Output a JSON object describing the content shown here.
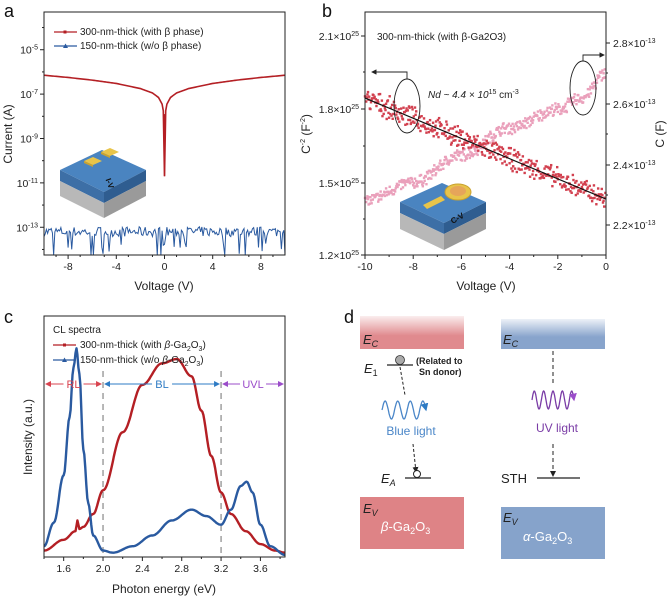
{
  "panels": {
    "a": {
      "label": "a"
    },
    "b": {
      "label": "b"
    },
    "c": {
      "label": "c"
    },
    "d": {
      "label": "d"
    }
  },
  "chart_data": [
    {
      "id": "a",
      "type": "line",
      "title": "",
      "xlabel": "Voltage (V)",
      "ylabel": "Current (A)",
      "yscale": "log",
      "xlim": [
        -10,
        10
      ],
      "ylim_log10": [
        -14.25,
        -3.3
      ],
      "xticks": [
        -8,
        -4,
        0,
        4,
        8
      ],
      "xtick_labels": [
        "-8",
        "-4",
        "0",
        "4",
        "8"
      ],
      "yticks_log10": [
        -5,
        -7,
        -9,
        -11,
        -13
      ],
      "ytick_labels": [
        "10-5",
        "10-7",
        "10-9",
        "10-11",
        "10-13"
      ],
      "legend": [
        {
          "name": "300-nm-thick (with β phase)",
          "color": "#b41f24",
          "marker": "square"
        },
        {
          "name": "150-nm-thick (w/o β phase)",
          "color": "#2a5aa0",
          "marker": "triangle"
        }
      ],
      "series": [
        {
          "name": "300-nm-thick (with β phase)",
          "color": "#b41f24",
          "x": [
            -10,
            -8,
            -6,
            -4,
            -2,
            -1,
            -0.5,
            -0.2,
            -0.05,
            0,
            0.05,
            0.2,
            0.5,
            1,
            2,
            4,
            6,
            8,
            10
          ],
          "y_log10": [
            -6.15,
            -6.25,
            -6.37,
            -6.52,
            -6.75,
            -6.95,
            -7.15,
            -7.45,
            -7.9,
            -10.7,
            -7.9,
            -7.45,
            -7.15,
            -6.95,
            -6.75,
            -6.52,
            -6.37,
            -6.25,
            -6.15
          ]
        },
        {
          "name": "150-nm-thick (w/o β phase)",
          "color": "#2a5aa0",
          "description": "noise floor near 1e-13 A with random dips to ~1e-14 A",
          "mean_log10": -13.2,
          "spread_log10": 0.45
        }
      ],
      "inset_label": "I-V"
    },
    {
      "id": "b",
      "type": "scatter",
      "title": "300-nm-thick (with β-Ga2O3)",
      "xlabel": "Voltage (V)",
      "ylabel_left": "C-2 (F-2)",
      "ylabel_right": "C (F)",
      "xlim": [
        -10,
        0
      ],
      "ylim_left": [
        1.2e+25,
        2.1e+25
      ],
      "ylim_right": [
        2.1e-13,
        2.87e-13
      ],
      "xticks": [
        -10,
        -8,
        -6,
        -4,
        -2,
        0
      ],
      "xtick_labels": [
        "-10",
        "-8",
        "-6",
        "-4",
        "-2",
        "0"
      ],
      "yticks_left": [
        2.1e+25,
        1.8e+25,
        1.5e+25,
        1.2e+25
      ],
      "ytick_left_labels": [
        "2.1×10",
        "1.8×10",
        "1.5×10",
        "1.2×10"
      ],
      "ytick_left_exp": "25",
      "yticks_right": [
        2.8e-13,
        2.6e-13,
        2.4e-13,
        2.2e-13
      ],
      "ytick_right_labels": [
        "2.8×10",
        "2.6×10",
        "2.4×10",
        "2.2×10"
      ],
      "ytick_right_exp": "-13",
      "annotation": {
        "text": "Nd ~ 4.4 × 10",
        "exp": "15",
        "unit": " cm",
        "unit_exp": "-3"
      },
      "series": [
        {
          "name": "C-2",
          "axis": "left",
          "color": "#d2404f",
          "fit_line": {
            "x": [
              -10,
              0
            ],
            "y": [
              1.845e+25,
              1.43e+25
            ]
          },
          "noise": 2.5e+23
        },
        {
          "name": "C",
          "axis": "right",
          "color": "#eaa0bb",
          "x": [
            -10,
            -8,
            -6,
            -4,
            -2,
            -1,
            0
          ],
          "y": [
            2.28e-13,
            2.34e-13,
            2.43e-13,
            2.52e-13,
            2.58e-13,
            2.62e-13,
            2.7e-13
          ],
          "noise": 1.2e-15
        }
      ],
      "inset_label": "C-V"
    },
    {
      "id": "c",
      "type": "line",
      "title": "CL spectra",
      "xlabel": "Photon energy (eV)",
      "ylabel": "Intensity (a.u.)",
      "xlim": [
        1.4,
        3.85
      ],
      "ylim": [
        0,
        1.12
      ],
      "xticks": [
        1.6,
        2.0,
        2.4,
        2.8,
        3.2,
        3.6
      ],
      "xtick_labels": [
        "1.6",
        "2.0",
        "2.4",
        "2.8",
        "3.2",
        "3.6"
      ],
      "dividers": [
        2.0,
        3.2
      ],
      "regions": [
        {
          "label": "RL",
          "color": "#d9434f",
          "from": 1.4,
          "to": 2.0
        },
        {
          "label": "BL",
          "color": "#2e7bc4",
          "from": 2.0,
          "to": 3.2
        },
        {
          "label": "UVL",
          "color": "#9b4dca",
          "from": 3.2,
          "to": 3.85
        }
      ],
      "legend": [
        {
          "name": "300-nm-thick (with β-Ga2O3)",
          "color": "#b41f24",
          "marker": "square"
        },
        {
          "name": "150-nm-thick (w/o β-Ga2O3)",
          "color": "#2a5aa0",
          "marker": "triangle"
        }
      ],
      "series": [
        {
          "name": "300-nm-thick (with β-Ga2O3)",
          "color": "#b41f24",
          "x": [
            1.4,
            1.6,
            1.72,
            1.74,
            1.76,
            1.8,
            1.9,
            2.0,
            2.2,
            2.4,
            2.6,
            2.75,
            2.9,
            3.0,
            3.1,
            3.2,
            3.3,
            3.45,
            3.6,
            3.75,
            3.85
          ],
          "y": [
            0.03,
            0.08,
            0.12,
            0.17,
            0.13,
            0.14,
            0.2,
            0.31,
            0.58,
            0.8,
            0.9,
            0.92,
            0.84,
            0.68,
            0.47,
            0.3,
            0.2,
            0.12,
            0.06,
            0.03,
            0.02
          ]
        },
        {
          "name": "150-nm-thick (w/o β-Ga2O3)",
          "color": "#2a5aa0",
          "x": [
            1.4,
            1.5,
            1.6,
            1.66,
            1.7,
            1.73,
            1.76,
            1.8,
            1.85,
            1.9,
            2.0,
            2.1,
            2.3,
            2.5,
            2.7,
            2.9,
            3.05,
            3.2,
            3.3,
            3.4,
            3.46,
            3.52,
            3.6,
            3.7,
            3.85
          ],
          "y": [
            0.05,
            0.16,
            0.38,
            0.65,
            0.88,
            0.97,
            0.85,
            0.5,
            0.25,
            0.1,
            0.03,
            0.02,
            0.05,
            0.1,
            0.17,
            0.22,
            0.19,
            0.15,
            0.22,
            0.33,
            0.35,
            0.3,
            0.15,
            0.05,
            0.01
          ]
        }
      ]
    }
  ],
  "diagram_d": {
    "beta": {
      "ec_label": "E",
      "ec_sub": "C",
      "e1_label": "E",
      "e1_sub": "1",
      "note_line1": "(Related to",
      "note_line2": "Sn donor)",
      "light_label": "Blue light",
      "ea_label": "E",
      "ea_sub": "A",
      "ev_label": "E",
      "ev_sub": "V",
      "material": "β-Ga",
      "material_sub1": "2",
      "material_mid": "O",
      "material_sub2": "3",
      "band_color": "#e08a8e",
      "light_color": "#4a86c8"
    },
    "alpha": {
      "ec_label": "E",
      "ec_sub": "C",
      "light_label": "UV light",
      "sth_label": "STH",
      "ev_label": "E",
      "ev_sub": "V",
      "material": "α-Ga",
      "material_sub1": "2",
      "material_mid": "O",
      "material_sub2": "3",
      "band_color": "#88a4cc",
      "light_color": "#7a3ca6"
    }
  }
}
